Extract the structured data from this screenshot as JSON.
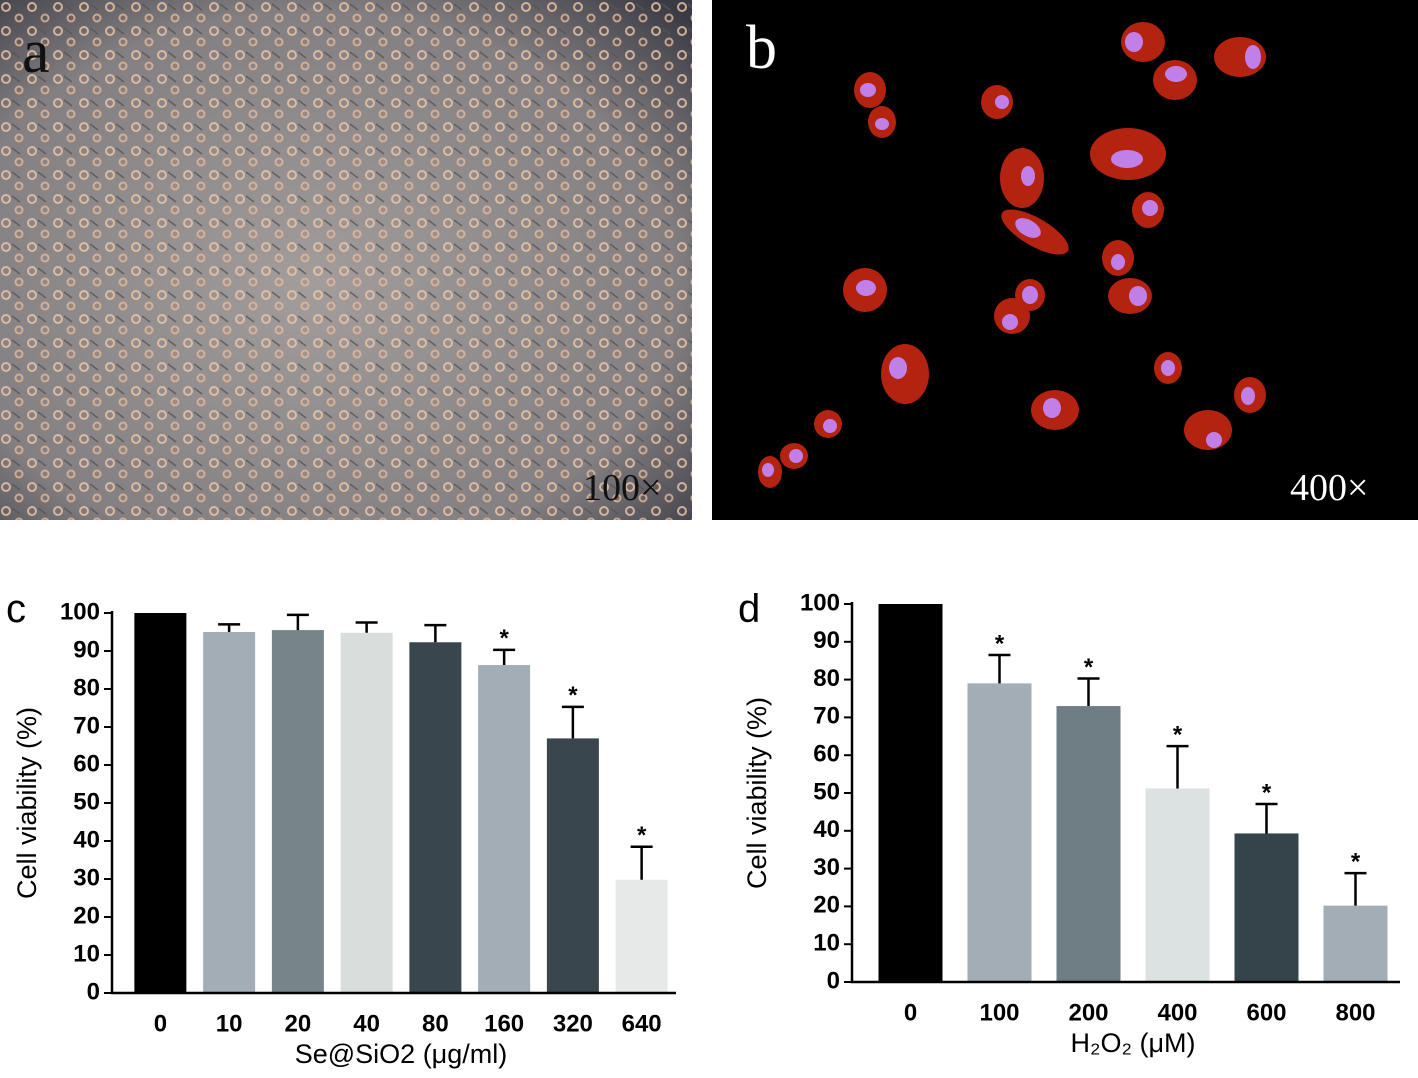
{
  "images": [
    {
      "label": "a",
      "magnification": "100×"
    },
    {
      "label": "b",
      "magnification": "400×"
    }
  ],
  "chart_data": [
    {
      "type": "bar",
      "panel": "c",
      "x_label": "Se@SiO2 (μg/ml)",
      "y_label": "Cell viability (%)",
      "categories": [
        "0",
        "10",
        "20",
        "40",
        "80",
        "160",
        "320",
        "640"
      ],
      "values": [
        100,
        95,
        95.5,
        94.8,
        92.3,
        86.3,
        67,
        29.8
      ],
      "errors": [
        null,
        2,
        4,
        2.7,
        4.5,
        4,
        8.3,
        8.7
      ],
      "significance": [
        null,
        null,
        null,
        null,
        null,
        "*",
        "*",
        "*"
      ],
      "colors": [
        "#000000",
        "#a3adb6",
        "#77848a",
        "#d9dedd",
        "#3a464e",
        "#a3adb6",
        "#3a464e",
        "#e6e9e8"
      ],
      "ylim": [
        0,
        100
      ],
      "yticks": [
        0,
        10,
        20,
        30,
        40,
        50,
        60,
        70,
        80,
        90,
        100
      ]
    },
    {
      "type": "bar",
      "panel": "d",
      "x_label": "H₂O₂ (μM)",
      "y_label": "Cell viability (%)",
      "categories": [
        "0",
        "100",
        "200",
        "400",
        "600",
        "800"
      ],
      "values": [
        100,
        79,
        73,
        51.2,
        39.3,
        20.2
      ],
      "errors": [
        null,
        7.5,
        7.3,
        11.2,
        7.8,
        8.6
      ],
      "significance": [
        null,
        "*",
        "*",
        "*",
        "*",
        "*"
      ],
      "colors": [
        "#000000",
        "#a3adb6",
        "#6f7e84",
        "#dce2e1",
        "#35434b",
        "#a3adb6"
      ],
      "ylim": [
        0,
        100
      ],
      "yticks": [
        0,
        10,
        20,
        30,
        40,
        50,
        60,
        70,
        80,
        90,
        100
      ]
    }
  ]
}
